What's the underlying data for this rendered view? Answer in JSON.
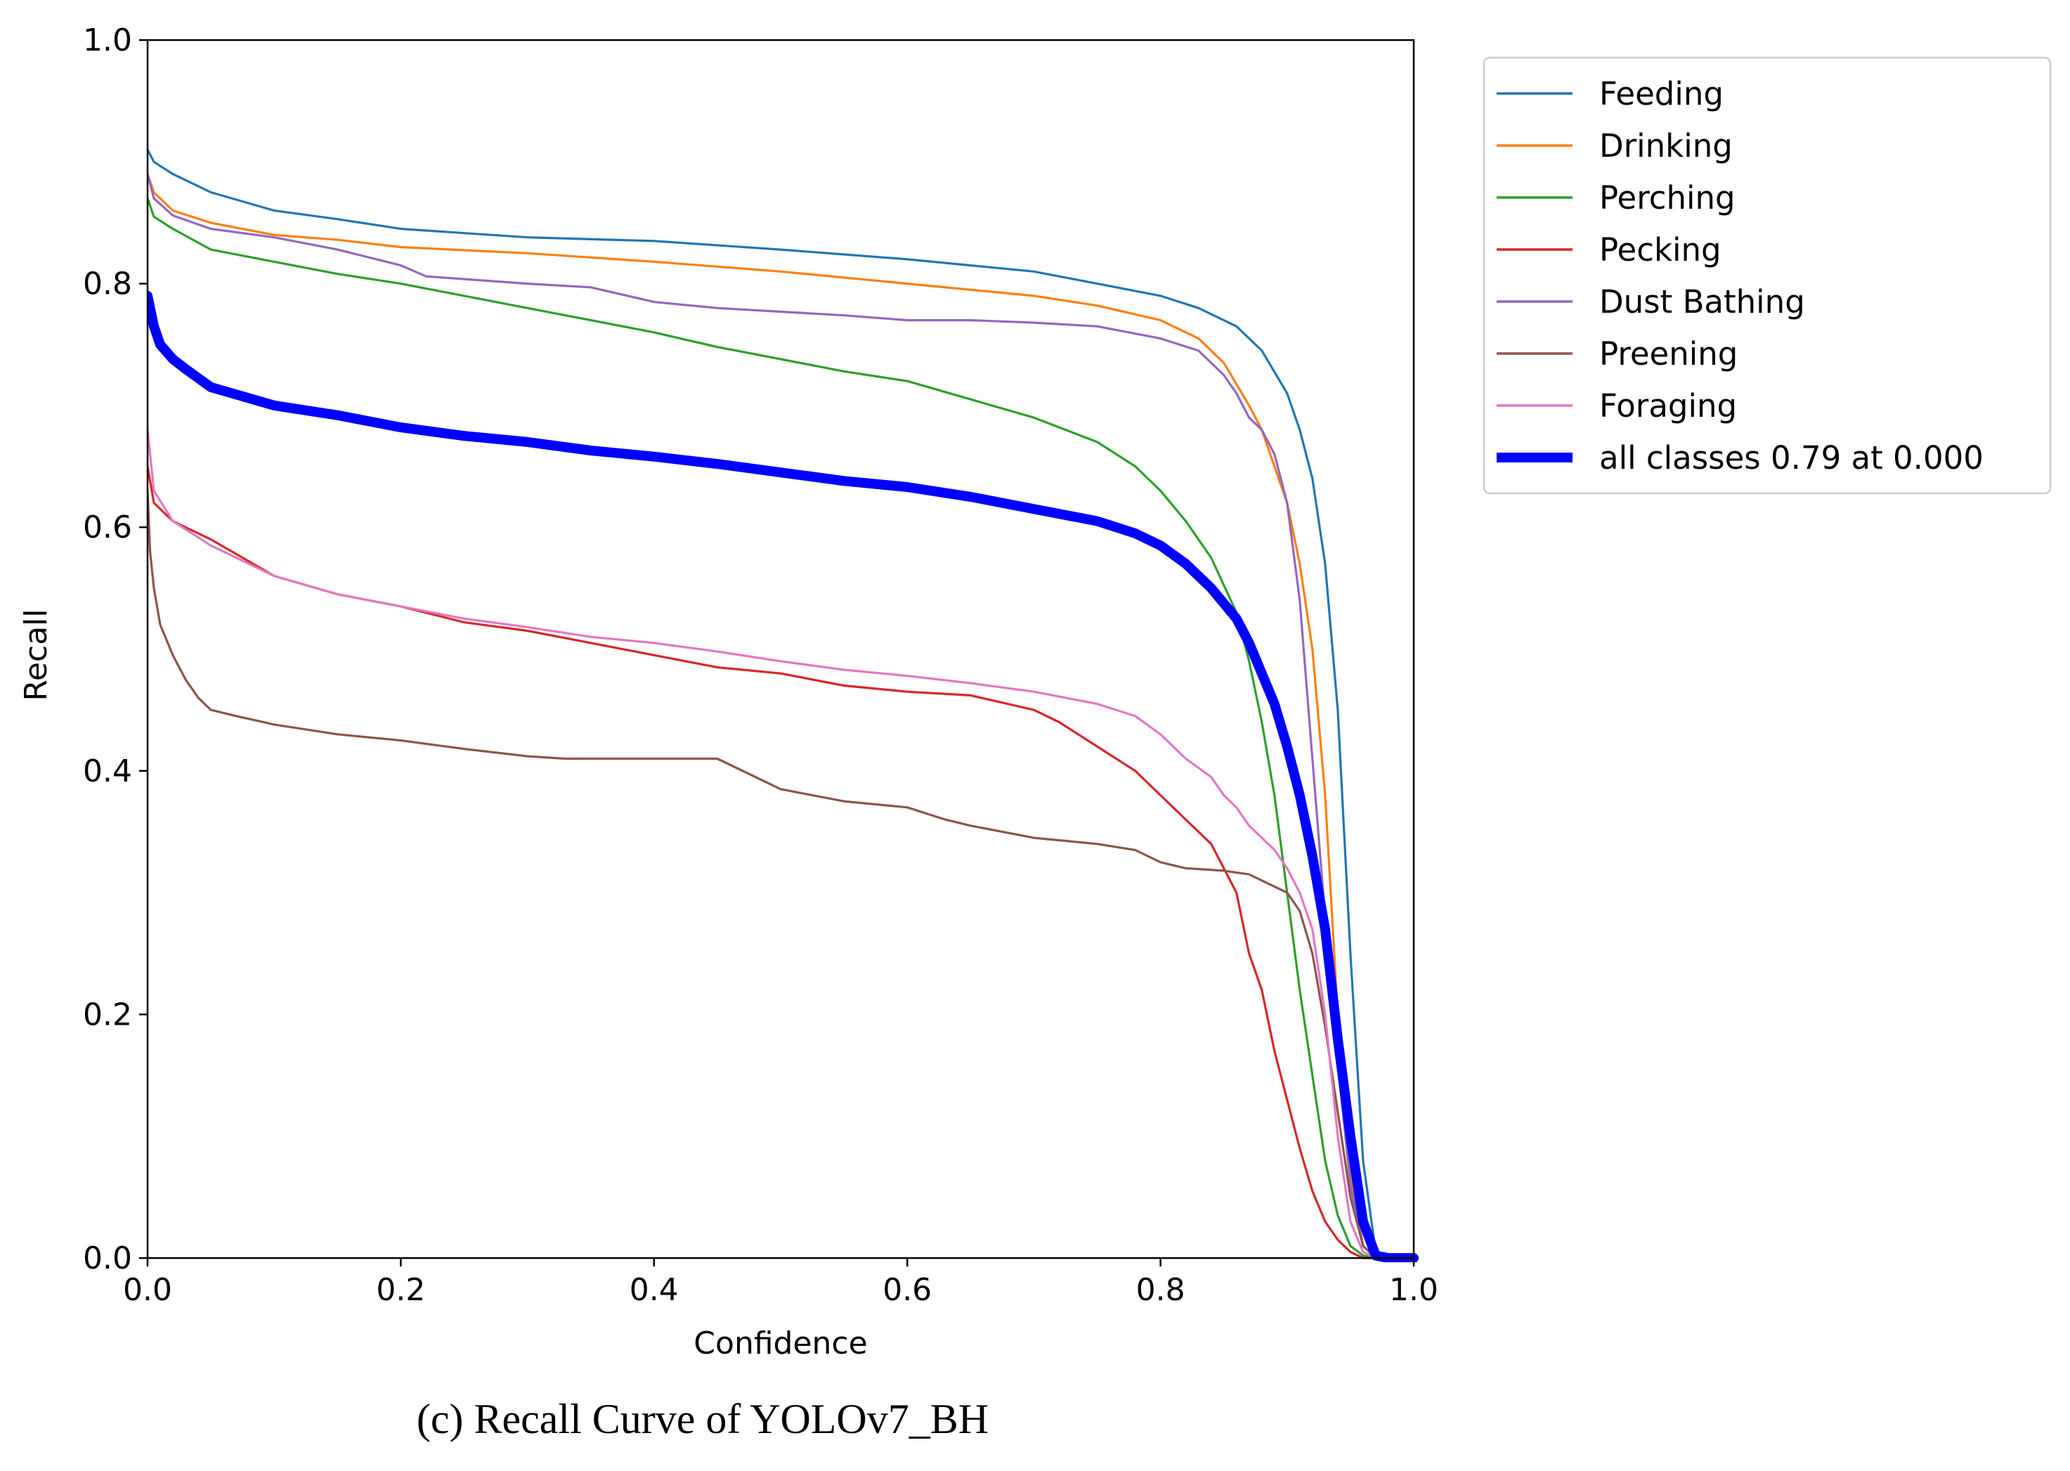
{
  "caption": "(c) Recall Curve of YOLOv7_BH",
  "chart_data": {
    "type": "line",
    "title": "",
    "xlabel": "Confidence",
    "ylabel": "Recall",
    "xlim": [
      0.0,
      1.0
    ],
    "ylim": [
      0.0,
      1.0
    ],
    "xticks": [
      "0.0",
      "0.2",
      "0.4",
      "0.6",
      "0.8",
      "1.0"
    ],
    "yticks": [
      "0.0",
      "0.2",
      "0.4",
      "0.6",
      "0.8",
      "1.0"
    ],
    "grid": false,
    "legend_position": "outside-top-right",
    "series": [
      {
        "name": "Feeding",
        "color": "#1f77b4",
        "width": "normal",
        "x": [
          0.0,
          0.005,
          0.02,
          0.05,
          0.1,
          0.15,
          0.2,
          0.3,
          0.4,
          0.5,
          0.6,
          0.7,
          0.75,
          0.8,
          0.83,
          0.86,
          0.88,
          0.9,
          0.91,
          0.92,
          0.93,
          0.94,
          0.95,
          0.96,
          0.97,
          0.98,
          1.0
        ],
        "y": [
          0.91,
          0.9,
          0.89,
          0.875,
          0.86,
          0.853,
          0.845,
          0.838,
          0.835,
          0.828,
          0.82,
          0.81,
          0.8,
          0.79,
          0.78,
          0.765,
          0.745,
          0.71,
          0.68,
          0.64,
          0.57,
          0.45,
          0.25,
          0.08,
          0.005,
          0.0,
          0.0
        ]
      },
      {
        "name": "Drinking",
        "color": "#ff7f0e",
        "width": "normal",
        "x": [
          0.0,
          0.005,
          0.02,
          0.05,
          0.1,
          0.15,
          0.2,
          0.3,
          0.4,
          0.5,
          0.6,
          0.7,
          0.75,
          0.8,
          0.83,
          0.85,
          0.87,
          0.88,
          0.9,
          0.91,
          0.92,
          0.93,
          0.94,
          0.95,
          0.96,
          0.97,
          0.98,
          1.0
        ],
        "y": [
          0.89,
          0.875,
          0.86,
          0.85,
          0.84,
          0.836,
          0.83,
          0.825,
          0.818,
          0.81,
          0.8,
          0.79,
          0.782,
          0.77,
          0.755,
          0.735,
          0.7,
          0.68,
          0.62,
          0.57,
          0.5,
          0.38,
          0.2,
          0.07,
          0.01,
          0.0,
          0.0,
          0.0
        ]
      },
      {
        "name": "Perching",
        "color": "#2ca02c",
        "width": "normal",
        "x": [
          0.0,
          0.005,
          0.02,
          0.05,
          0.1,
          0.15,
          0.2,
          0.25,
          0.3,
          0.35,
          0.4,
          0.45,
          0.5,
          0.55,
          0.6,
          0.65,
          0.7,
          0.75,
          0.78,
          0.8,
          0.82,
          0.84,
          0.86,
          0.87,
          0.88,
          0.89,
          0.9,
          0.91,
          0.92,
          0.93,
          0.94,
          0.95,
          0.96,
          0.97,
          0.98,
          1.0
        ],
        "y": [
          0.87,
          0.855,
          0.845,
          0.828,
          0.818,
          0.808,
          0.8,
          0.79,
          0.78,
          0.77,
          0.76,
          0.748,
          0.738,
          0.728,
          0.72,
          0.705,
          0.69,
          0.67,
          0.65,
          0.63,
          0.605,
          0.575,
          0.53,
          0.49,
          0.44,
          0.38,
          0.3,
          0.22,
          0.15,
          0.08,
          0.035,
          0.01,
          0.002,
          0.0,
          0.0,
          0.0
        ]
      },
      {
        "name": "Pecking",
        "color": "#d62728",
        "width": "normal",
        "x": [
          0.0,
          0.005,
          0.02,
          0.05,
          0.1,
          0.15,
          0.2,
          0.25,
          0.3,
          0.35,
          0.4,
          0.45,
          0.5,
          0.55,
          0.6,
          0.65,
          0.7,
          0.72,
          0.75,
          0.78,
          0.8,
          0.82,
          0.84,
          0.85,
          0.86,
          0.87,
          0.88,
          0.89,
          0.9,
          0.91,
          0.92,
          0.93,
          0.94,
          0.95,
          0.96,
          0.97,
          1.0
        ],
        "y": [
          0.65,
          0.62,
          0.605,
          0.59,
          0.56,
          0.545,
          0.535,
          0.522,
          0.515,
          0.505,
          0.495,
          0.485,
          0.48,
          0.47,
          0.465,
          0.462,
          0.45,
          0.44,
          0.42,
          0.4,
          0.38,
          0.36,
          0.34,
          0.32,
          0.3,
          0.25,
          0.22,
          0.17,
          0.13,
          0.09,
          0.055,
          0.03,
          0.015,
          0.005,
          0.0,
          0.0,
          0.0
        ]
      },
      {
        "name": "Dust Bathing",
        "color": "#9467bd",
        "width": "normal",
        "x": [
          0.0,
          0.005,
          0.02,
          0.05,
          0.1,
          0.15,
          0.2,
          0.22,
          0.3,
          0.35,
          0.4,
          0.45,
          0.5,
          0.55,
          0.6,
          0.65,
          0.7,
          0.75,
          0.8,
          0.83,
          0.85,
          0.86,
          0.87,
          0.88,
          0.89,
          0.9,
          0.91,
          0.92,
          0.93,
          0.94,
          0.95,
          0.96,
          0.97,
          0.98,
          1.0
        ],
        "y": [
          0.89,
          0.87,
          0.856,
          0.845,
          0.838,
          0.828,
          0.815,
          0.806,
          0.8,
          0.797,
          0.785,
          0.78,
          0.777,
          0.774,
          0.77,
          0.77,
          0.768,
          0.765,
          0.755,
          0.745,
          0.725,
          0.71,
          0.69,
          0.68,
          0.66,
          0.62,
          0.54,
          0.41,
          0.28,
          0.16,
          0.06,
          0.01,
          0.0,
          0.0,
          0.0
        ]
      },
      {
        "name": "Preening",
        "color": "#8c564b",
        "width": "normal",
        "x": [
          0.0,
          0.002,
          0.005,
          0.01,
          0.02,
          0.03,
          0.04,
          0.05,
          0.07,
          0.1,
          0.15,
          0.2,
          0.25,
          0.3,
          0.33,
          0.35,
          0.4,
          0.45,
          0.48,
          0.5,
          0.55,
          0.6,
          0.63,
          0.65,
          0.7,
          0.75,
          0.78,
          0.8,
          0.82,
          0.85,
          0.87,
          0.88,
          0.9,
          0.91,
          0.92,
          0.93,
          0.94,
          0.95,
          0.96,
          0.97,
          1.0
        ],
        "y": [
          0.63,
          0.58,
          0.55,
          0.52,
          0.495,
          0.475,
          0.46,
          0.45,
          0.445,
          0.438,
          0.43,
          0.425,
          0.418,
          0.412,
          0.41,
          0.41,
          0.41,
          0.41,
          0.395,
          0.385,
          0.375,
          0.37,
          0.36,
          0.355,
          0.345,
          0.34,
          0.335,
          0.325,
          0.32,
          0.318,
          0.315,
          0.31,
          0.3,
          0.285,
          0.25,
          0.19,
          0.12,
          0.05,
          0.01,
          0.0,
          0.0
        ]
      },
      {
        "name": "Foraging",
        "color": "#e377c2",
        "width": "normal",
        "x": [
          0.0,
          0.005,
          0.02,
          0.05,
          0.1,
          0.15,
          0.2,
          0.25,
          0.3,
          0.35,
          0.4,
          0.45,
          0.5,
          0.55,
          0.6,
          0.65,
          0.7,
          0.75,
          0.78,
          0.8,
          0.82,
          0.84,
          0.85,
          0.86,
          0.87,
          0.88,
          0.89,
          0.9,
          0.91,
          0.92,
          0.93,
          0.94,
          0.95,
          0.96,
          0.97,
          1.0
        ],
        "y": [
          0.68,
          0.63,
          0.605,
          0.585,
          0.56,
          0.545,
          0.535,
          0.525,
          0.518,
          0.51,
          0.505,
          0.498,
          0.49,
          0.483,
          0.478,
          0.472,
          0.465,
          0.455,
          0.445,
          0.43,
          0.41,
          0.395,
          0.38,
          0.37,
          0.355,
          0.345,
          0.335,
          0.32,
          0.3,
          0.27,
          0.2,
          0.1,
          0.03,
          0.005,
          0.0,
          0.0
        ]
      },
      {
        "name": "all classes 0.79 at 0.000",
        "color": "#0000ff",
        "width": "thick",
        "x": [
          0.0,
          0.005,
          0.01,
          0.02,
          0.03,
          0.05,
          0.1,
          0.15,
          0.2,
          0.25,
          0.3,
          0.35,
          0.4,
          0.45,
          0.5,
          0.55,
          0.6,
          0.65,
          0.7,
          0.75,
          0.78,
          0.8,
          0.82,
          0.84,
          0.86,
          0.87,
          0.88,
          0.89,
          0.9,
          0.91,
          0.92,
          0.93,
          0.94,
          0.95,
          0.96,
          0.97,
          0.98,
          1.0
        ],
        "y": [
          0.79,
          0.765,
          0.75,
          0.738,
          0.73,
          0.715,
          0.7,
          0.692,
          0.682,
          0.675,
          0.67,
          0.663,
          0.658,
          0.652,
          0.645,
          0.638,
          0.633,
          0.625,
          0.615,
          0.605,
          0.595,
          0.585,
          0.57,
          0.55,
          0.525,
          0.505,
          0.48,
          0.455,
          0.42,
          0.38,
          0.33,
          0.27,
          0.18,
          0.1,
          0.03,
          0.002,
          0.0,
          0.0
        ]
      }
    ]
  }
}
